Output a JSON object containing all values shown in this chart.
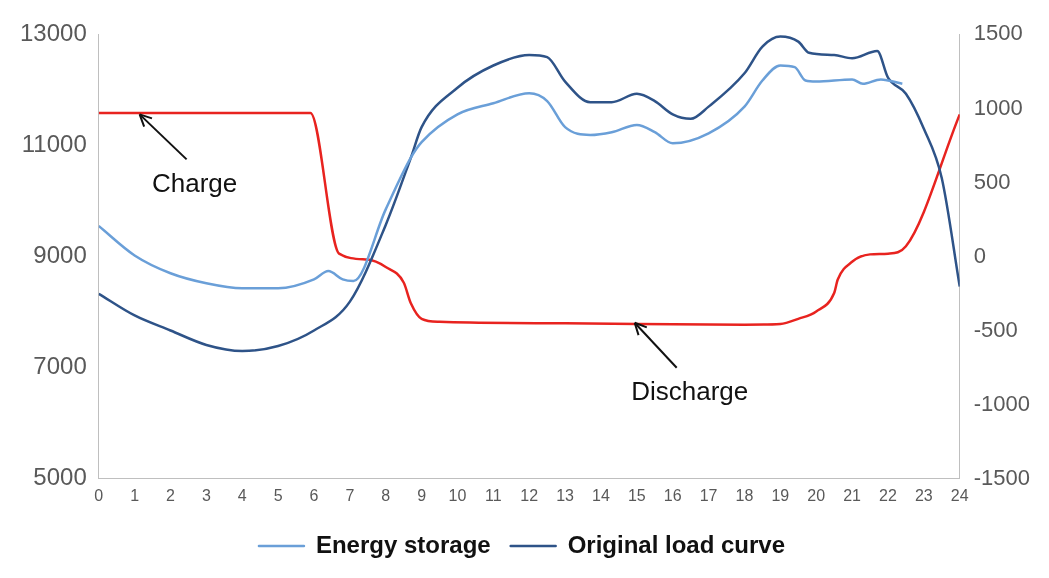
{
  "chart_data": {
    "type": "line",
    "xlim": [
      0,
      24
    ],
    "xticks": [
      0,
      1,
      2,
      3,
      4,
      5,
      6,
      7,
      8,
      9,
      10,
      11,
      12,
      13,
      14,
      15,
      16,
      17,
      18,
      19,
      20,
      21,
      22,
      23,
      24
    ],
    "ylim": [
      5000,
      13000
    ],
    "yticks": [
      5000,
      7000,
      9000,
      11000,
      13000
    ],
    "y2lim": [
      -1500,
      1500
    ],
    "y2ticks": [
      -1500,
      -1000,
      -500,
      0,
      500,
      1000,
      1500
    ],
    "grid": false,
    "legend": "bottom",
    "marker": "none",
    "line_style": "solid",
    "series": [
      {
        "name": "Energy storage",
        "color": "#6a9fd8",
        "x": [
          0,
          1,
          2,
          3,
          4,
          5,
          6,
          6.4,
          6.8,
          7.1,
          8,
          8.7,
          9,
          10,
          11,
          12,
          12.5,
          13,
          13.7,
          14.3,
          15,
          15.5,
          16,
          17,
          18,
          18.5,
          19,
          19.4,
          19.7,
          20,
          21,
          21.3,
          21.8,
          22.4
        ],
        "values": [
          9550,
          9020,
          8700,
          8520,
          8430,
          8430,
          8590,
          8740,
          8590,
          8560,
          9850,
          10780,
          11060,
          11560,
          11760,
          11940,
          11800,
          11330,
          11190,
          11240,
          11370,
          11240,
          11040,
          11220,
          11700,
          12170,
          12440,
          12410,
          12170,
          12150,
          12190,
          12110,
          12190,
          12110
        ]
      },
      {
        "name": "Original load curve",
        "color": "#2e5388",
        "x": [
          0,
          1,
          2,
          3,
          4,
          5,
          6,
          7,
          8,
          8.7,
          9,
          10,
          11,
          12,
          12.5,
          13,
          13.7,
          14.3,
          15,
          15.5,
          16,
          16.5,
          17,
          18,
          18.5,
          19,
          19.5,
          19.8,
          20.5,
          21,
          21.7,
          22,
          22.5,
          23,
          23.5,
          24
        ],
        "values": [
          8330,
          7940,
          7670,
          7410,
          7300,
          7390,
          7670,
          8190,
          9570,
          10780,
          11330,
          12040,
          12440,
          12630,
          12590,
          12150,
          11780,
          11780,
          11930,
          11800,
          11560,
          11480,
          11700,
          12300,
          12780,
          12960,
          12870,
          12670,
          12630,
          12570,
          12700,
          12220,
          11930,
          11300,
          10410,
          8460
        ]
      },
      {
        "color": "#e8231f",
        "axis": "y2",
        "x": [
          0,
          5.9,
          6.7,
          7.5,
          8,
          8.5,
          8.7,
          9,
          9.5,
          13,
          18,
          19,
          19.5,
          20,
          20.5,
          20.6,
          21,
          21.5,
          22,
          22.5,
          24
        ],
        "values": [
          970,
          970,
          20,
          -20,
          -70,
          -175,
          -315,
          -420,
          -440,
          -450,
          -460,
          -455,
          -420,
          -370,
          -245,
          -155,
          -35,
          15,
          20,
          70,
          960
        ]
      }
    ],
    "annotations": [
      {
        "text": "Charge",
        "x": 1,
        "y": 11650
      },
      {
        "text": "Discharge",
        "x": 14.8,
        "y": 7900
      }
    ]
  }
}
